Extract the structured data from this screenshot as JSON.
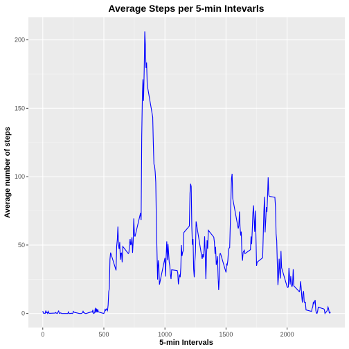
{
  "chart_data": {
    "type": "line",
    "title": "Average Steps per 5-min Intevarls",
    "x_label": "5-min Intervals",
    "y_label": "Average number of steps",
    "xlim": [
      -117.75,
      2472.75
    ],
    "ylim": [
      -10.3,
      216.5
    ],
    "xticks": [
      0,
      500,
      1000,
      1500,
      2000
    ],
    "yticks": [
      0,
      50,
      100,
      150,
      200
    ],
    "grid": true,
    "series": [
      {
        "name": "steps",
        "color": "#0000ff",
        "x": [
          0,
          5,
          10,
          15,
          20,
          25,
          30,
          35,
          40,
          45,
          50,
          55,
          100,
          105,
          110,
          115,
          120,
          125,
          130,
          135,
          140,
          145,
          150,
          155,
          200,
          205,
          210,
          215,
          220,
          225,
          230,
          235,
          240,
          245,
          250,
          255,
          300,
          305,
          310,
          315,
          320,
          325,
          330,
          335,
          340,
          345,
          350,
          355,
          400,
          405,
          410,
          415,
          420,
          425,
          430,
          435,
          440,
          445,
          450,
          455,
          500,
          505,
          510,
          515,
          520,
          525,
          530,
          535,
          540,
          545,
          550,
          555,
          600,
          605,
          610,
          615,
          620,
          625,
          630,
          635,
          640,
          645,
          650,
          655,
          700,
          705,
          710,
          715,
          720,
          725,
          730,
          735,
          740,
          745,
          750,
          755,
          800,
          805,
          810,
          815,
          820,
          825,
          830,
          835,
          840,
          845,
          850,
          855,
          900,
          905,
          910,
          915,
          920,
          925,
          930,
          935,
          940,
          945,
          950,
          955,
          1000,
          1005,
          1010,
          1015,
          1020,
          1025,
          1030,
          1035,
          1040,
          1045,
          1050,
          1055,
          1100,
          1105,
          1110,
          1115,
          1120,
          1125,
          1130,
          1135,
          1140,
          1145,
          1150,
          1155,
          1200,
          1205,
          1210,
          1215,
          1220,
          1225,
          1230,
          1235,
          1240,
          1245,
          1250,
          1255,
          1300,
          1305,
          1310,
          1315,
          1320,
          1325,
          1330,
          1335,
          1340,
          1345,
          1350,
          1355,
          1400,
          1405,
          1410,
          1415,
          1420,
          1425,
          1430,
          1435,
          1440,
          1445,
          1450,
          1455,
          1500,
          1505,
          1510,
          1515,
          1520,
          1525,
          1530,
          1535,
          1540,
          1545,
          1550,
          1555,
          1600,
          1605,
          1610,
          1615,
          1620,
          1625,
          1630,
          1635,
          1640,
          1645,
          1650,
          1655,
          1700,
          1705,
          1710,
          1715,
          1720,
          1725,
          1730,
          1735,
          1740,
          1745,
          1750,
          1755,
          1800,
          1805,
          1810,
          1815,
          1820,
          1825,
          1830,
          1835,
          1840,
          1845,
          1850,
          1855,
          1900,
          1905,
          1910,
          1915,
          1920,
          1925,
          1930,
          1935,
          1940,
          1945,
          1950,
          1955,
          2000,
          2005,
          2010,
          2015,
          2020,
          2025,
          2030,
          2035,
          2040,
          2045,
          2050,
          2055,
          2100,
          2105,
          2110,
          2115,
          2120,
          2125,
          2130,
          2135,
          2140,
          2145,
          2150,
          2155,
          2200,
          2205,
          2210,
          2215,
          2220,
          2225,
          2230,
          2235,
          2240,
          2245,
          2250,
          2255,
          2300,
          2305,
          2310,
          2315,
          2320,
          2325,
          2330,
          2335,
          2340,
          2345,
          2350,
          2355
        ],
        "values": [
          1.7,
          0.3,
          0.1,
          0.2,
          0.1,
          2.1,
          0.5,
          0.9,
          0,
          1.5,
          0.3,
          0.1,
          0.3,
          0.7,
          0.2,
          0.3,
          0,
          1.1,
          1.8,
          0.2,
          0.1,
          0.4,
          0.3,
          0,
          0,
          0,
          1.1,
          0,
          0,
          0.1,
          0,
          0.2,
          0,
          0,
          1.5,
          0.9,
          0,
          0,
          0,
          0,
          0.2,
          0.6,
          1.6,
          0.6,
          0.5,
          0.1,
          0,
          0,
          1.2,
          0.9,
          2.6,
          0,
          0.3,
          0.4,
          4.1,
          0.7,
          3.5,
          0.8,
          3.1,
          1.1,
          0,
          1.6,
          3.0,
          2.2,
          3.3,
          3.0,
          2.1,
          6.1,
          16.0,
          18.3,
          39.5,
          44.5,
          31.5,
          49.3,
          53.8,
          63.5,
          50,
          47.1,
          52.2,
          39.3,
          44.0,
          44.2,
          37.4,
          49.0,
          43.8,
          44.4,
          50.5,
          54.5,
          49.9,
          51.0,
          55.7,
          44.3,
          52.3,
          69.5,
          57.8,
          56.2,
          73.4,
          68.2,
          129.4,
          157.5,
          171.2,
          155.4,
          177.3,
          206.2,
          195.9,
          179.6,
          183.4,
          167.0,
          143.5,
          124.0,
          109.1,
          108.1,
          103.7,
          95.9,
          66.2,
          45.2,
          24.8,
          38.8,
          35.0,
          21.1,
          40.6,
          27,
          42.4,
          52.7,
          39,
          50.8,
          44.3,
          37.4,
          34.7,
          28.3,
          25.1,
          31.9,
          31.4,
          29.7,
          21.3,
          25.5,
          28.4,
          26.5,
          33.4,
          50,
          42,
          44.6,
          46,
          59.2,
          63.9,
          87.7,
          94.8,
          92.8,
          63.4,
          50.2,
          54.5,
          32.4,
          26.5,
          37.7,
          45.1,
          67.3,
          42.3,
          39.9,
          43.3,
          41.0,
          46.2,
          56.4,
          42.8,
          25.1,
          39.9,
          53.5,
          47.3,
          60.8,
          55.8,
          52.0,
          43.6,
          48.7,
          35.5,
          37.5,
          41.8,
          27.5,
          17.1,
          26.1,
          43.6,
          43.8,
          30.0,
          36.1,
          35.5,
          38.8,
          46.0,
          47.8,
          48.1,
          65.3,
          82.9,
          98.7,
          102.1,
          84.0,
          62.1,
          64.1,
          74.5,
          63.2,
          56.9,
          59.8,
          43.9,
          38.6,
          44.7,
          45.5,
          46.2,
          43.7,
          46.6,
          56.3,
          50.7,
          61.2,
          73.4,
          79.0,
          68.9,
          59.7,
          75.1,
          56.5,
          34.8,
          37.5,
          40.7,
          58.0,
          74.7,
          85.3,
          59.3,
          67.8,
          77.7,
          74.2,
          85.3,
          99.5,
          86.6,
          85.6,
          84.9,
          77.8,
          58.0,
          53.4,
          36.3,
          20.7,
          27.4,
          40.0,
          30.2,
          25.5,
          45.7,
          33.5,
          19.6,
          19.0,
          19.3,
          33.3,
          26.8,
          21.2,
          27.3,
          21.3,
          19.5,
          21.3,
          32.3,
          20.2,
          15.9,
          17.2,
          23.5,
          19.2,
          12.5,
          8.0,
          14.7,
          16.3,
          8.7,
          7.8,
          8.1,
          2.6,
          1.5,
          3.7,
          4.8,
          8.5,
          7.1,
          8.7,
          9.8,
          2.2,
          0.3,
          0.1,
          1.6,
          4.6,
          3.3,
          2.8,
          0,
          0.8,
          1.0,
          1.6,
          2.6,
          4.7,
          3.3,
          0.6,
          0.2,
          1.1
        ]
      }
    ]
  }
}
